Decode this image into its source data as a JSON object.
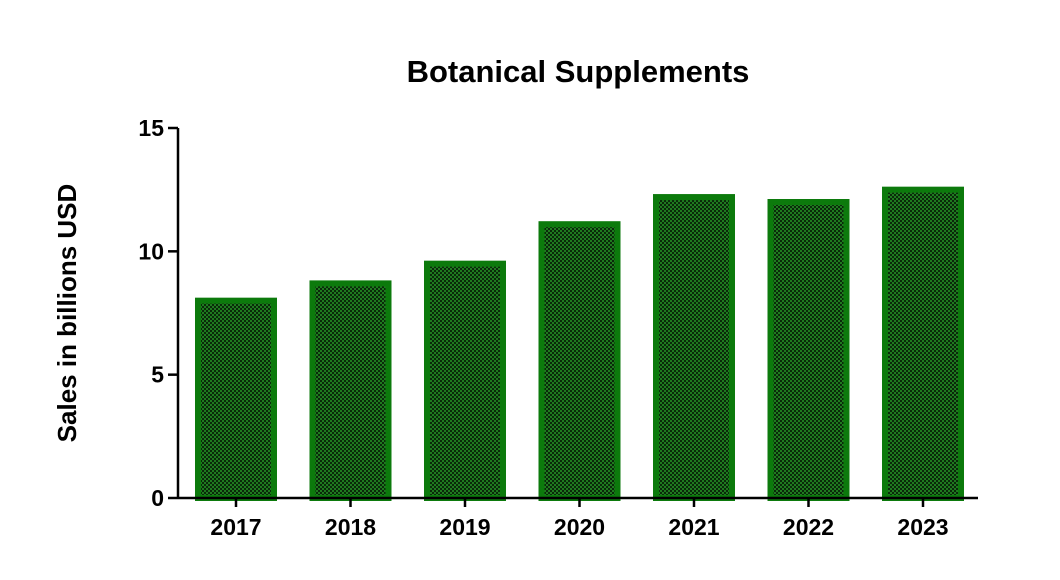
{
  "colors": {
    "bar_outline": "#0c7a0c",
    "bar_checker_dark": "#0a2a0a",
    "bar_checker_light": "#1f7a1f",
    "axis": "#000000"
  },
  "chart_data": {
    "type": "bar",
    "title": "Botanical Supplements",
    "xlabel": "",
    "ylabel": "Sales in billions USD",
    "categories": [
      "2017",
      "2018",
      "2019",
      "2020",
      "2021",
      "2022",
      "2023"
    ],
    "values": [
      8.0,
      8.7,
      9.5,
      11.1,
      12.2,
      12.0,
      12.5
    ],
    "ylim": [
      0,
      15
    ],
    "yticks": [
      0,
      5,
      10,
      15
    ],
    "ytick_labels": [
      "0",
      "5",
      "10",
      "15"
    ],
    "grid": false,
    "legend": "none"
  }
}
